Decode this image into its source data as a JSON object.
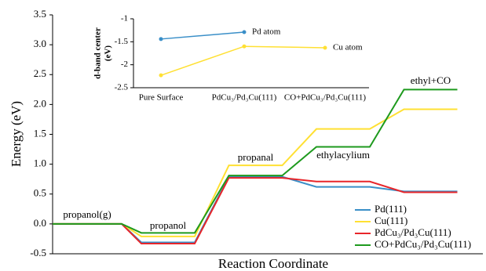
{
  "chart_data": [
    {
      "type": "step",
      "y_label": "Energy (eV)",
      "x_label": "Reaction Coordinate",
      "categories": [
        "propanol(g)",
        "propanol",
        "propanal",
        "ethylacylium",
        "ethyl+CO"
      ],
      "series": [
        {
          "name": "Pd(111)",
          "color": "#3a8fc8",
          "values": [
            0,
            -0.31,
            0.79,
            0.62,
            0.545
          ]
        },
        {
          "name": "Cu(111)",
          "color": "#ffe033",
          "values": [
            0,
            -0.21,
            0.98,
            1.59,
            1.92
          ]
        },
        {
          "name": "PdCu₃/Pd₃Cu(111)",
          "color": "#e8262a",
          "values": [
            0,
            -0.33,
            0.77,
            0.71,
            0.53
          ]
        },
        {
          "name": "CO+PdCu₃/Pd₃Cu(111)",
          "color": "#1e9a1e",
          "values": [
            0,
            -0.15,
            0.81,
            1.29,
            2.25
          ]
        }
      ],
      "ylim": [
        -0.5,
        3.5
      ],
      "yticks": [
        -0.5,
        {
          "value": 0,
          "label": "0.0"
        },
        0.5,
        {
          "value": 1,
          "label": "1.0"
        },
        1.5,
        {
          "value": 2,
          "label": "2.0"
        },
        2.5,
        {
          "value": 3,
          "label": "3.0"
        },
        3.5
      ],
      "legend": "lower right"
    },
    {
      "type": "line",
      "y_label": [
        "d-band center",
        "(eV)"
      ],
      "categories": [
        "Pure Surface",
        "PdCu₃/Pd₃Cu(111)",
        "CO+PdCu₃/Pd₃Cu(111)"
      ],
      "series": [
        {
          "name": "Pd atom",
          "color": "#3a8fc8",
          "values": [
            -1.44,
            -1.29,
            null
          ]
        },
        {
          "name": "Cu atom",
          "color": "#ffe033",
          "values": [
            -2.23,
            -1.6,
            -1.63
          ]
        }
      ],
      "ylim": [
        -2.5,
        -1
      ],
      "yticks": [
        -2.5,
        -2,
        -1.5,
        -1
      ]
    }
  ]
}
